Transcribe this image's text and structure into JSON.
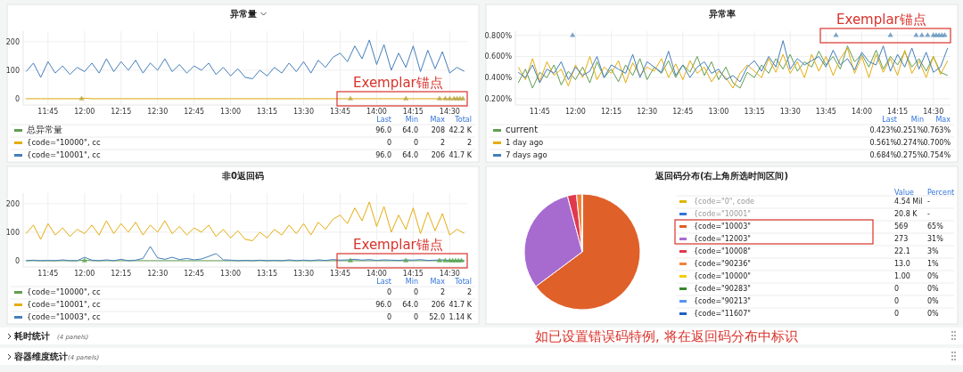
{
  "chart_data": [
    {
      "type": "line",
      "title": "异常量",
      "x": [
        11.6,
        11.65,
        11.7,
        11.75,
        11.8,
        11.85,
        11.9,
        11.95,
        12,
        12.05,
        12.1,
        12.15,
        12.2,
        12.25,
        12.3,
        12.35,
        12.4,
        12.45,
        12.5,
        12.55,
        12.6,
        12.65,
        12.7,
        12.75,
        12.8,
        12.85,
        12.9,
        12.95,
        13,
        13.05,
        13.1,
        13.15,
        13.2,
        13.25,
        13.3,
        13.35,
        13.4,
        13.45,
        13.5,
        13.55,
        13.6,
        13.65,
        13.7,
        13.75,
        13.8,
        13.85,
        13.9,
        13.95,
        14,
        14.05,
        14.1,
        14.15,
        14.2,
        14.25,
        14.3,
        14.35,
        14.4,
        14.45,
        14.5,
        14.55,
        14.6
      ],
      "series": [
        {
          "name": "总异常量",
          "color": "#629e51",
          "values": [
            null,
            null,
            null,
            null,
            null,
            null,
            null,
            null,
            null,
            null,
            null,
            null,
            null,
            null,
            null,
            null,
            null,
            null,
            null,
            null,
            null,
            null,
            null,
            null,
            null,
            null,
            null,
            null,
            null,
            null,
            null,
            null,
            null,
            null,
            null,
            null,
            null,
            null,
            null,
            null,
            null,
            null,
            null,
            null,
            null,
            null,
            null,
            null,
            null,
            null,
            null,
            null,
            null,
            null,
            null,
            null,
            null,
            null,
            null,
            null,
            null
          ]
        },
        {
          "name": "{code=\"10000\", cc",
          "color": "#e5ac0e",
          "values": [
            0,
            0,
            0,
            0,
            0,
            0,
            0,
            0,
            2,
            0,
            0,
            0,
            0,
            0,
            0,
            0,
            0,
            0,
            0,
            0,
            0,
            0,
            0,
            0,
            0,
            0,
            0,
            0,
            0,
            0,
            0,
            0,
            0,
            0,
            0,
            0,
            0,
            0,
            0,
            0,
            0,
            0,
            0,
            0,
            0,
            0,
            0,
            0,
            0,
            0,
            0,
            0,
            0,
            0,
            0,
            0,
            0,
            0,
            0,
            0,
            0
          ]
        },
        {
          "name": "{code=\"10001\", cc",
          "color": "#447ebc",
          "values": [
            95,
            125,
            75,
            130,
            90,
            115,
            85,
            110,
            95,
            125,
            90,
            140,
            95,
            130,
            100,
            135,
            90,
            125,
            100,
            140,
            95,
            120,
            90,
            115,
            100,
            125,
            85,
            110,
            80,
            105,
            75,
            70,
            100,
            80,
            110,
            90,
            125,
            95,
            130,
            90,
            135,
            110,
            145,
            160,
            130,
            185,
            140,
            206,
            120,
            190,
            100,
            160,
            110,
            185,
            95,
            170,
            105,
            165,
            90,
            110,
            96
          ]
        },
        {
          "type": "scatter",
          "marker": "triangle",
          "color": "#b5a642",
          "x": [
            11.98,
            13.82,
            14.2,
            14.43,
            14.47,
            14.5,
            14.53,
            14.55,
            14.57,
            14.59
          ],
          "values": [
            0,
            0,
            0,
            0,
            0,
            0,
            0,
            0,
            0,
            0
          ]
        }
      ],
      "xlim": [
        11.58,
        14.62
      ],
      "ylim": [
        -22,
        237
      ],
      "yticks": [
        0,
        100,
        200
      ],
      "xticks": [
        {
          "value": 11.75,
          "label": "11:45"
        },
        {
          "value": 12,
          "label": "12:00"
        },
        {
          "value": 12.25,
          "label": "12:15"
        },
        {
          "value": 12.5,
          "label": "12:30"
        },
        {
          "value": 12.75,
          "label": "12:45"
        },
        {
          "value": 13,
          "label": "13:00"
        },
        {
          "value": 13.25,
          "label": "13:15"
        },
        {
          "value": 13.5,
          "label": "13:30"
        },
        {
          "value": 13.75,
          "label": "13:45"
        },
        {
          "value": 14,
          "label": "14:00"
        },
        {
          "value": 14.25,
          "label": "14:15"
        },
        {
          "value": 14.5,
          "label": "14:30"
        }
      ],
      "grid": true,
      "legend": "bottom",
      "annotations": [
        "Last",
        "Min",
        "Max",
        "Total",
        "96.0",
        "64.0",
        "208",
        "42.2 K",
        "0",
        "0",
        "2",
        "2",
        "96.0",
        "64.0",
        "206",
        "41.7 K",
        "Exemplar锚点"
      ]
    },
    {
      "type": "line",
      "title": "异常率",
      "x": [
        11.6,
        11.65,
        11.7,
        11.75,
        11.8,
        11.85,
        11.9,
        11.95,
        12,
        12.05,
        12.1,
        12.15,
        12.2,
        12.25,
        12.3,
        12.35,
        12.4,
        12.45,
        12.5,
        12.55,
        12.6,
        12.65,
        12.7,
        12.75,
        12.8,
        12.85,
        12.9,
        12.95,
        13,
        13.05,
        13.1,
        13.15,
        13.2,
        13.25,
        13.3,
        13.35,
        13.4,
        13.45,
        13.5,
        13.55,
        13.6,
        13.65,
        13.7,
        13.75,
        13.8,
        13.85,
        13.9,
        13.95,
        14,
        14.05,
        14.1,
        14.15,
        14.2,
        14.25,
        14.3,
        14.35,
        14.4,
        14.45,
        14.5,
        14.55,
        14.6
      ],
      "series": [
        {
          "name": "current",
          "color": "#629e51",
          "values": [
            0.35,
            0.48,
            0.3,
            0.45,
            0.4,
            0.52,
            0.33,
            0.46,
            0.38,
            0.5,
            0.35,
            0.55,
            0.4,
            0.48,
            0.36,
            0.52,
            0.42,
            0.58,
            0.38,
            0.5,
            0.44,
            0.56,
            0.4,
            0.52,
            0.45,
            0.6,
            0.42,
            0.55,
            0.38,
            0.5,
            0.35,
            0.3,
            0.45,
            0.4,
            0.52,
            0.44,
            0.58,
            0.48,
            0.62,
            0.46,
            0.55,
            0.5,
            0.65,
            0.52,
            0.6,
            0.48,
            0.7,
            0.55,
            0.62,
            0.5,
            0.66,
            0.48,
            0.6,
            0.52,
            0.64,
            0.5,
            0.58,
            0.46,
            0.6,
            0.45,
            0.42
          ]
        },
        {
          "name": "1 day ago",
          "color": "#e5ac0e",
          "values": [
            0.5,
            0.38,
            0.58,
            0.36,
            0.55,
            0.42,
            0.48,
            0.32,
            0.52,
            0.4,
            0.6,
            0.38,
            0.5,
            0.44,
            0.56,
            0.35,
            0.54,
            0.42,
            0.5,
            0.46,
            0.58,
            0.4,
            0.53,
            0.38,
            0.56,
            0.44,
            0.5,
            0.36,
            0.46,
            0.4,
            0.3,
            0.44,
            0.52,
            0.46,
            0.4,
            0.58,
            0.45,
            0.62,
            0.44,
            0.55,
            0.4,
            0.62,
            0.46,
            0.6,
            0.42,
            0.58,
            0.68,
            0.44,
            0.6,
            0.4,
            0.62,
            0.45,
            0.58,
            0.42,
            0.66,
            0.44,
            0.56,
            0.4,
            0.6,
            0.43,
            0.56
          ]
        },
        {
          "name": "7 days ago",
          "color": "#447ebc",
          "values": [
            0.45,
            0.4,
            0.52,
            0.35,
            0.48,
            0.44,
            0.55,
            0.38,
            0.5,
            0.42,
            0.46,
            0.6,
            0.4,
            0.52,
            0.48,
            0.44,
            0.62,
            0.4,
            0.55,
            0.5,
            0.45,
            0.65,
            0.42,
            0.52,
            0.4,
            0.5,
            0.55,
            0.44,
            0.48,
            0.38,
            0.42,
            0.36,
            0.5,
            0.56,
            0.46,
            0.6,
            0.5,
            0.75,
            0.48,
            0.58,
            0.52,
            0.56,
            0.6,
            0.5,
            0.66,
            0.52,
            0.58,
            0.47,
            0.64,
            0.55,
            0.52,
            0.7,
            0.46,
            0.62,
            0.5,
            0.68,
            0.48,
            0.64,
            0.45,
            0.5,
            0.68
          ]
        },
        {
          "type": "scatter",
          "marker": "triangle",
          "color": "#5b8fb9",
          "x": [
            11.98,
            13.82,
            14.2,
            14.38,
            14.42,
            14.46,
            14.5,
            14.52,
            14.54,
            14.56,
            14.58
          ],
          "values": [
            0.8,
            0.8,
            0.8,
            0.8,
            0.8,
            0.8,
            0.8,
            0.8,
            0.8,
            0.8,
            0.8
          ]
        }
      ],
      "xlim": [
        11.58,
        14.62
      ],
      "ylim": [
        0.14,
        0.84
      ],
      "yticks": [
        {
          "value": 0.2,
          "label": "0.200%"
        },
        {
          "value": 0.4,
          "label": "0.400%"
        },
        {
          "value": 0.6,
          "label": "0.600%"
        },
        {
          "value": 0.8,
          "label": "0.800%"
        }
      ],
      "xticks": [
        {
          "value": 11.75,
          "label": "11:45"
        },
        {
          "value": 12,
          "label": "12:00"
        },
        {
          "value": 12.25,
          "label": "12:15"
        },
        {
          "value": 12.5,
          "label": "12:30"
        },
        {
          "value": 12.75,
          "label": "12:45"
        },
        {
          "value": 13,
          "label": "13:00"
        },
        {
          "value": 13.25,
          "label": "13:15"
        },
        {
          "value": 13.5,
          "label": "13:30"
        },
        {
          "value": 13.75,
          "label": "13:45"
        },
        {
          "value": 14,
          "label": "14:00"
        },
        {
          "value": 14.25,
          "label": "14:15"
        },
        {
          "value": 14.5,
          "label": "14:30"
        }
      ],
      "grid": true,
      "legend": "bottom",
      "annotations": [
        "Last",
        "Min",
        "Max",
        "0.423%",
        "0.251%",
        "0.763%",
        "0.561%",
        "0.274%",
        "0.700%",
        "0.684%",
        "0.275%",
        "0.754%",
        "Exemplar锚点"
      ]
    },
    {
      "type": "line",
      "title": "非0返回码",
      "x": [
        11.6,
        11.65,
        11.7,
        11.75,
        11.8,
        11.85,
        11.9,
        11.95,
        12,
        12.05,
        12.1,
        12.15,
        12.2,
        12.25,
        12.3,
        12.35,
        12.4,
        12.45,
        12.5,
        12.55,
        12.6,
        12.65,
        12.7,
        12.75,
        12.8,
        12.85,
        12.9,
        12.95,
        13,
        13.05,
        13.1,
        13.15,
        13.2,
        13.25,
        13.3,
        13.35,
        13.4,
        13.45,
        13.5,
        13.55,
        13.6,
        13.65,
        13.7,
        13.75,
        13.8,
        13.85,
        13.9,
        13.95,
        14,
        14.05,
        14.1,
        14.15,
        14.2,
        14.25,
        14.3,
        14.35,
        14.4,
        14.45,
        14.5,
        14.55,
        14.6
      ],
      "series": [
        {
          "name": "{code=\"10000\", cc",
          "color": "#629e51",
          "values": [
            0,
            0,
            0,
            0,
            0,
            0,
            0,
            0,
            2,
            0,
            0,
            0,
            0,
            0,
            0,
            0,
            0,
            0,
            0,
            0,
            0,
            0,
            0,
            0,
            0,
            0,
            0,
            0,
            0,
            0,
            0,
            0,
            0,
            0,
            0,
            0,
            0,
            0,
            0,
            0,
            0,
            0,
            0,
            0,
            0,
            0,
            0,
            0,
            0,
            0,
            0,
            0,
            0,
            0,
            0,
            0,
            0,
            0,
            0,
            0,
            0
          ]
        },
        {
          "name": "{code=\"10001\", cc",
          "color": "#e5ac0e",
          "values": [
            95,
            125,
            75,
            130,
            90,
            115,
            85,
            110,
            95,
            125,
            90,
            140,
            95,
            130,
            100,
            135,
            90,
            125,
            100,
            140,
            95,
            120,
            90,
            115,
            100,
            125,
            85,
            110,
            80,
            105,
            75,
            70,
            100,
            80,
            110,
            90,
            125,
            95,
            130,
            90,
            135,
            110,
            145,
            160,
            130,
            185,
            140,
            206,
            120,
            190,
            100,
            160,
            110,
            185,
            95,
            170,
            105,
            165,
            90,
            110,
            96
          ]
        },
        {
          "name": "{code=\"10003\", cc",
          "color": "#447ebc",
          "values": [
            0,
            2,
            0,
            1,
            0,
            3,
            0,
            0,
            12,
            2,
            0,
            3,
            0,
            5,
            0,
            2,
            8,
            50,
            10,
            5,
            12,
            4,
            8,
            3,
            6,
            15,
            25,
            3,
            2,
            0,
            1,
            0,
            2,
            0,
            1,
            0,
            3,
            0,
            2,
            0,
            3,
            1,
            4,
            2,
            3,
            5,
            2,
            4,
            1,
            3,
            2,
            1,
            3,
            2,
            4,
            1,
            2,
            3,
            1,
            0,
            0
          ]
        },
        {
          "type": "scatter",
          "marker": "triangle",
          "color": "#56a64b",
          "x": [
            12,
            13.82,
            14.2,
            14.43,
            14.47,
            14.5,
            14.52,
            14.54,
            14.56,
            14.58
          ],
          "values": [
            0,
            0,
            0,
            0,
            0,
            0,
            0,
            0,
            0,
            0
          ]
        }
      ],
      "xlim": [
        11.58,
        14.62
      ],
      "ylim": [
        -22,
        237
      ],
      "yticks": [
        0,
        100,
        200
      ],
      "xticks": [
        {
          "value": 11.75,
          "label": "11:45"
        },
        {
          "value": 12,
          "label": "12:00"
        },
        {
          "value": 12.25,
          "label": "12:15"
        },
        {
          "value": 12.5,
          "label": "12:30"
        },
        {
          "value": 12.75,
          "label": "12:45"
        },
        {
          "value": 13,
          "label": "13:00"
        },
        {
          "value": 13.25,
          "label": "13:15"
        },
        {
          "value": 13.5,
          "label": "13:30"
        },
        {
          "value": 13.75,
          "label": "13:45"
        },
        {
          "value": 14,
          "label": "14:00"
        },
        {
          "value": 14.25,
          "label": "14:15"
        },
        {
          "value": 14.5,
          "label": "14:30"
        }
      ],
      "grid": true,
      "legend": "bottom",
      "annotations": [
        "Last",
        "Min",
        "Max",
        "Total",
        "0",
        "0",
        "2",
        "2",
        "96.0",
        "64.0",
        "206",
        "41.7 K",
        "0",
        "0",
        "52.0",
        "1.14 K",
        "Exemplar锚点"
      ]
    },
    {
      "type": "pie",
      "title": "返回码分布(右上角所选时间区间)",
      "categories": [
        "{code=\"0\", code",
        "{code=\"10001\"",
        "{code=\"10003\"",
        "{code=\"12003\"",
        "{code=\"10008\"",
        "{code=\"90236\"",
        "{code=\"10000\"",
        "{code=\"90283\"",
        "{code=\"90213\"",
        "{code=\"11607\""
      ],
      "values": [
        null,
        null,
        569,
        273,
        22.1,
        13.0,
        1.0,
        0,
        0,
        0
      ],
      "value_labels": [
        "4.54 Mil",
        "20.8 K",
        "569",
        "273",
        "22.1",
        "13.0",
        "1.00",
        "0",
        "0",
        "0"
      ],
      "colors": [
        "#e0b400",
        "#3274d9",
        "#e0602a",
        "#a76bcf",
        "#e0394f",
        "#f2833c",
        "#f2cc0c",
        "#37872d",
        "#5794f2",
        "#1f60c4"
      ],
      "legend": "right",
      "annotations": [
        "Value",
        "Percent",
        "-",
        "-",
        "65%",
        "31%",
        "3%",
        "1%",
        "0%",
        "0%",
        "0%",
        "0%"
      ]
    },
    {
      "type": "other",
      "annotations": [
        "耗时统计",
        "(4 panels)",
        "容器维度统计",
        "(4 panels)",
        "如已设置错误码特例, 将在返回码分布中标识"
      ]
    }
  ]
}
